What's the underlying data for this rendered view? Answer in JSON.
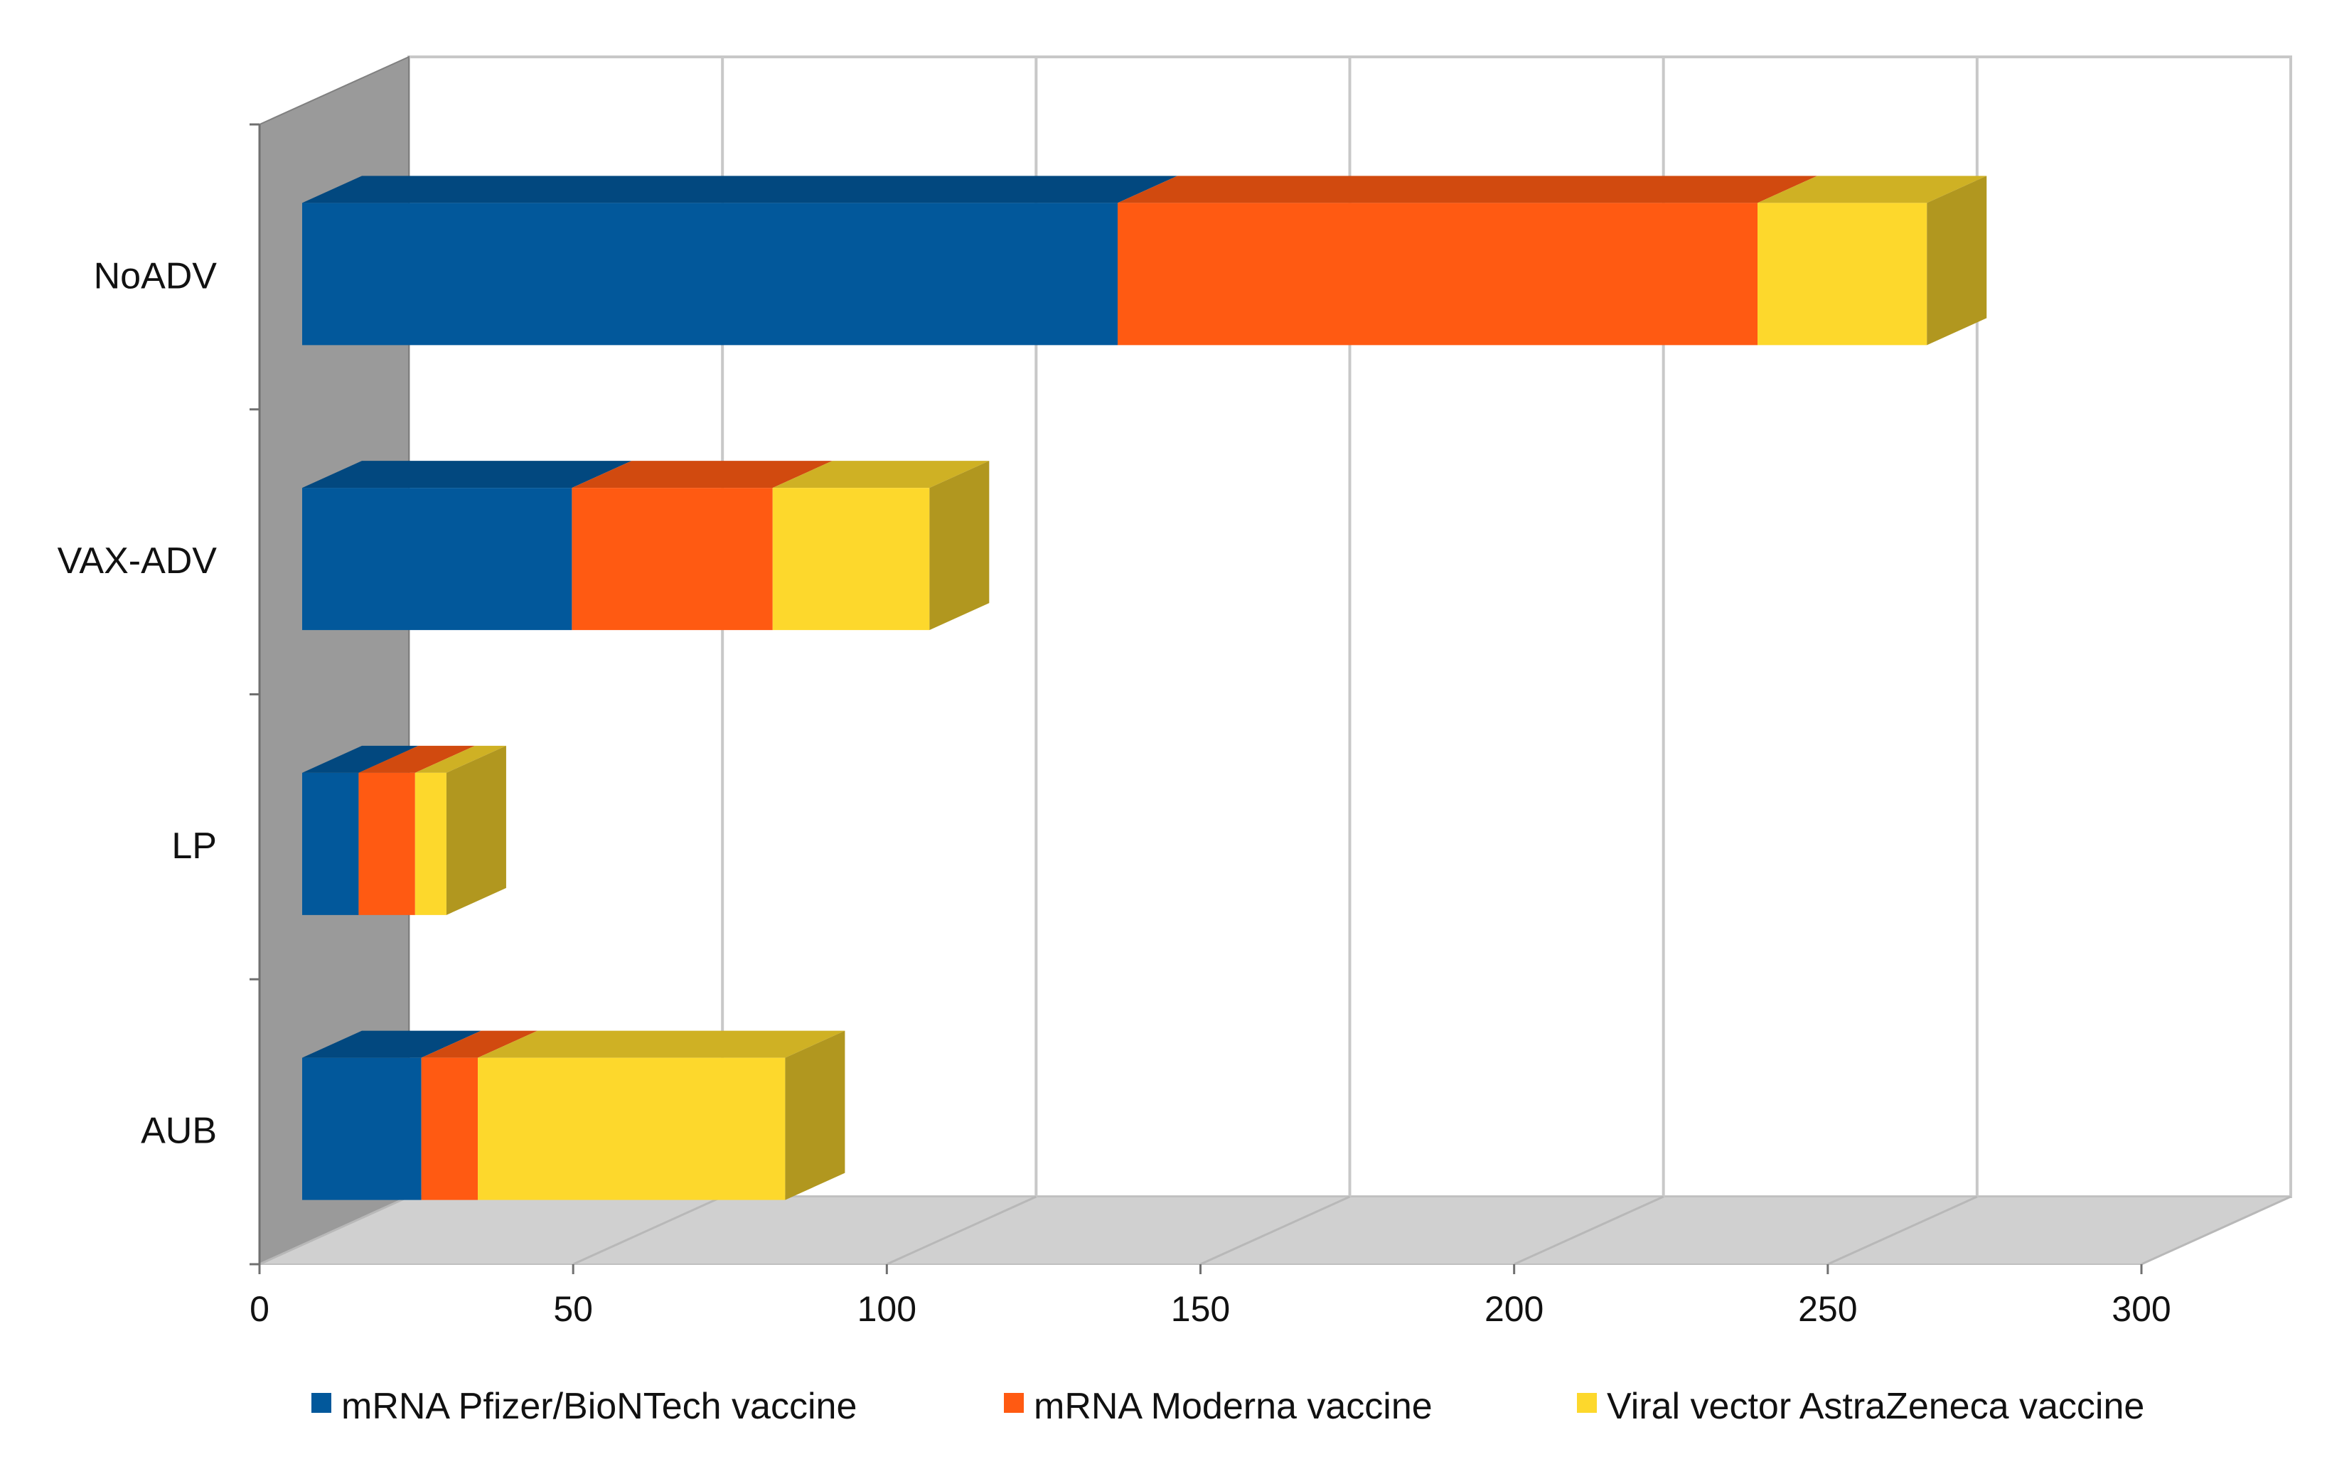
{
  "chart_data": {
    "type": "bar",
    "orientation": "horizontal",
    "stacked": true,
    "three_d": true,
    "categories": [
      "NoADV",
      "VAX-ADV",
      "LP",
      "AUB"
    ],
    "series": [
      {
        "name": "mRNA Pfizer/BioNTech vaccine",
        "values": [
          130,
          43,
          9,
          19
        ],
        "color": "#02589B"
      },
      {
        "name": "mRNA  Moderna vaccine",
        "values": [
          102,
          32,
          9,
          9
        ],
        "color": "#FF5A12"
      },
      {
        "name": "Viral vector AstraZeneca vaccine",
        "values": [
          27,
          25,
          5,
          49
        ],
        "color": "#FDD82C"
      }
    ],
    "xlim": [
      0,
      300
    ],
    "xticks": [
      "0",
      "50",
      "100",
      "150",
      "200",
      "250",
      "300"
    ],
    "grid": true,
    "legend_position": "bottom",
    "title": "",
    "xlabel": "",
    "ylabel": ""
  }
}
